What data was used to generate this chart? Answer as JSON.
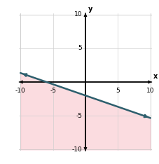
{
  "xlim": [
    -10,
    10
  ],
  "ylim": [
    -10,
    10
  ],
  "xticks": [
    -10,
    -5,
    5,
    10
  ],
  "yticks": [
    -10,
    -5,
    5,
    10
  ],
  "xtick_labels": [
    "-10",
    "-5",
    "5",
    "10"
  ],
  "ytick_labels": [
    "-10",
    "-5",
    "5",
    "10"
  ],
  "slope": -0.3333333333333333,
  "intercept": -2,
  "line_color": "#2d5f6d",
  "line_width": 1.8,
  "shade_color": "#f8c0c8",
  "shade_alpha": 0.55,
  "background_color": "#ffffff",
  "grid_color": "#d0d0d0",
  "xlabel": "x",
  "ylabel": "y",
  "figsize": [
    2.28,
    2.34
  ],
  "dpi": 100
}
